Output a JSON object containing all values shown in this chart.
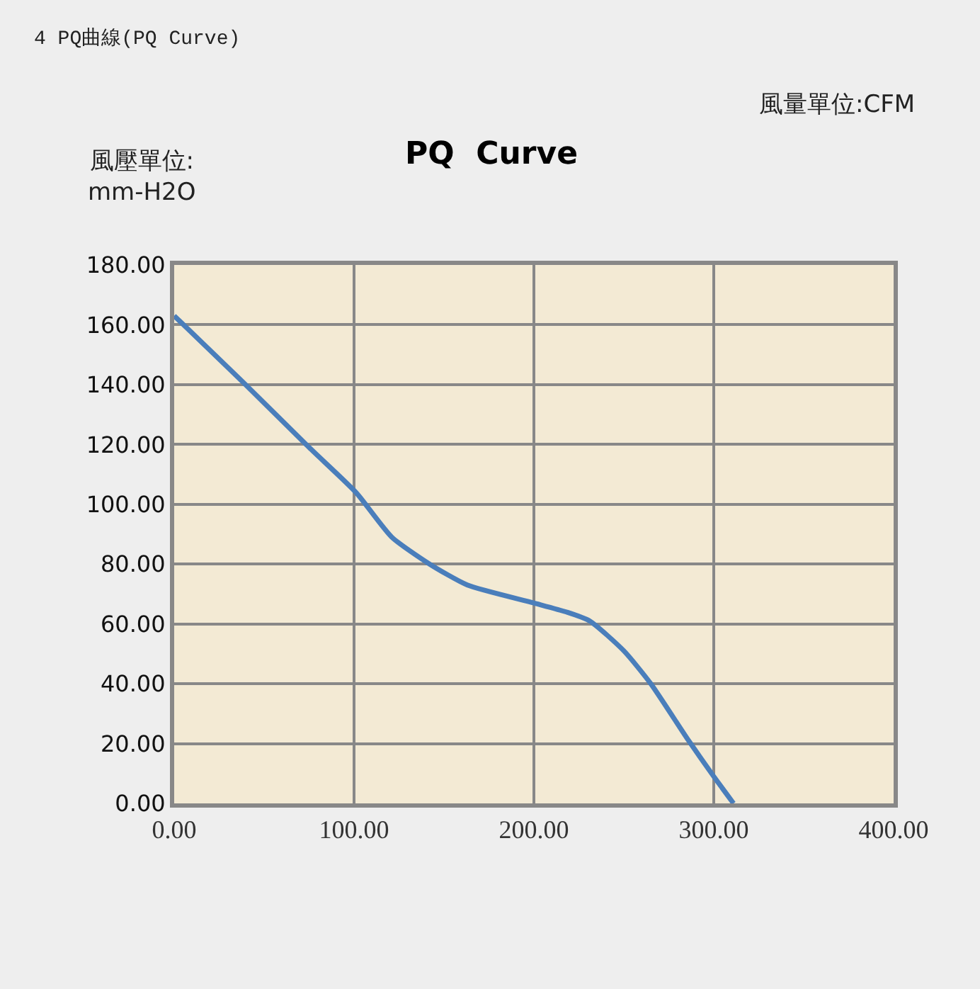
{
  "chart_data": {
    "type": "line",
    "title": "PQ  Curve",
    "annotations": [
      "4 PQ曲線(PQ Curve)",
      "風量單位:CFM",
      "風壓單位:\nmm-H2O"
    ],
    "x": [
      0,
      38,
      75,
      101,
      121,
      142,
      163,
      200,
      218,
      231,
      250,
      265,
      286,
      300,
      311
    ],
    "series": [
      {
        "color": "#4a7ebb",
        "values": [
          163,
          141,
          119,
          104,
          89,
          80,
          73,
          67,
          64,
          61,
          51,
          40,
          21,
          9,
          0
        ]
      }
    ],
    "xlim": [
      0,
      400
    ],
    "ylim": [
      0,
      180
    ],
    "xticks": [
      {
        "value": 0,
        "label": "0.00"
      },
      {
        "value": 100,
        "label": "100.00"
      },
      {
        "value": 200,
        "label": "200.00"
      },
      {
        "value": 300,
        "label": "300.00"
      },
      {
        "value": 400,
        "label": "400.00"
      }
    ],
    "yticks": [
      {
        "value": 0,
        "label": "0.00"
      },
      {
        "value": 20,
        "label": "20.00"
      },
      {
        "value": 40,
        "label": "40.00"
      },
      {
        "value": 60,
        "label": "60.00"
      },
      {
        "value": 80,
        "label": "80.00"
      },
      {
        "value": 100,
        "label": "100.00"
      },
      {
        "value": 120,
        "label": "120.00"
      },
      {
        "value": 140,
        "label": "140.00"
      },
      {
        "value": 160,
        "label": "160.00"
      },
      {
        "value": 180,
        "label": "180.00"
      }
    ],
    "grid": true,
    "marker": "none",
    "line_style": "solid"
  }
}
